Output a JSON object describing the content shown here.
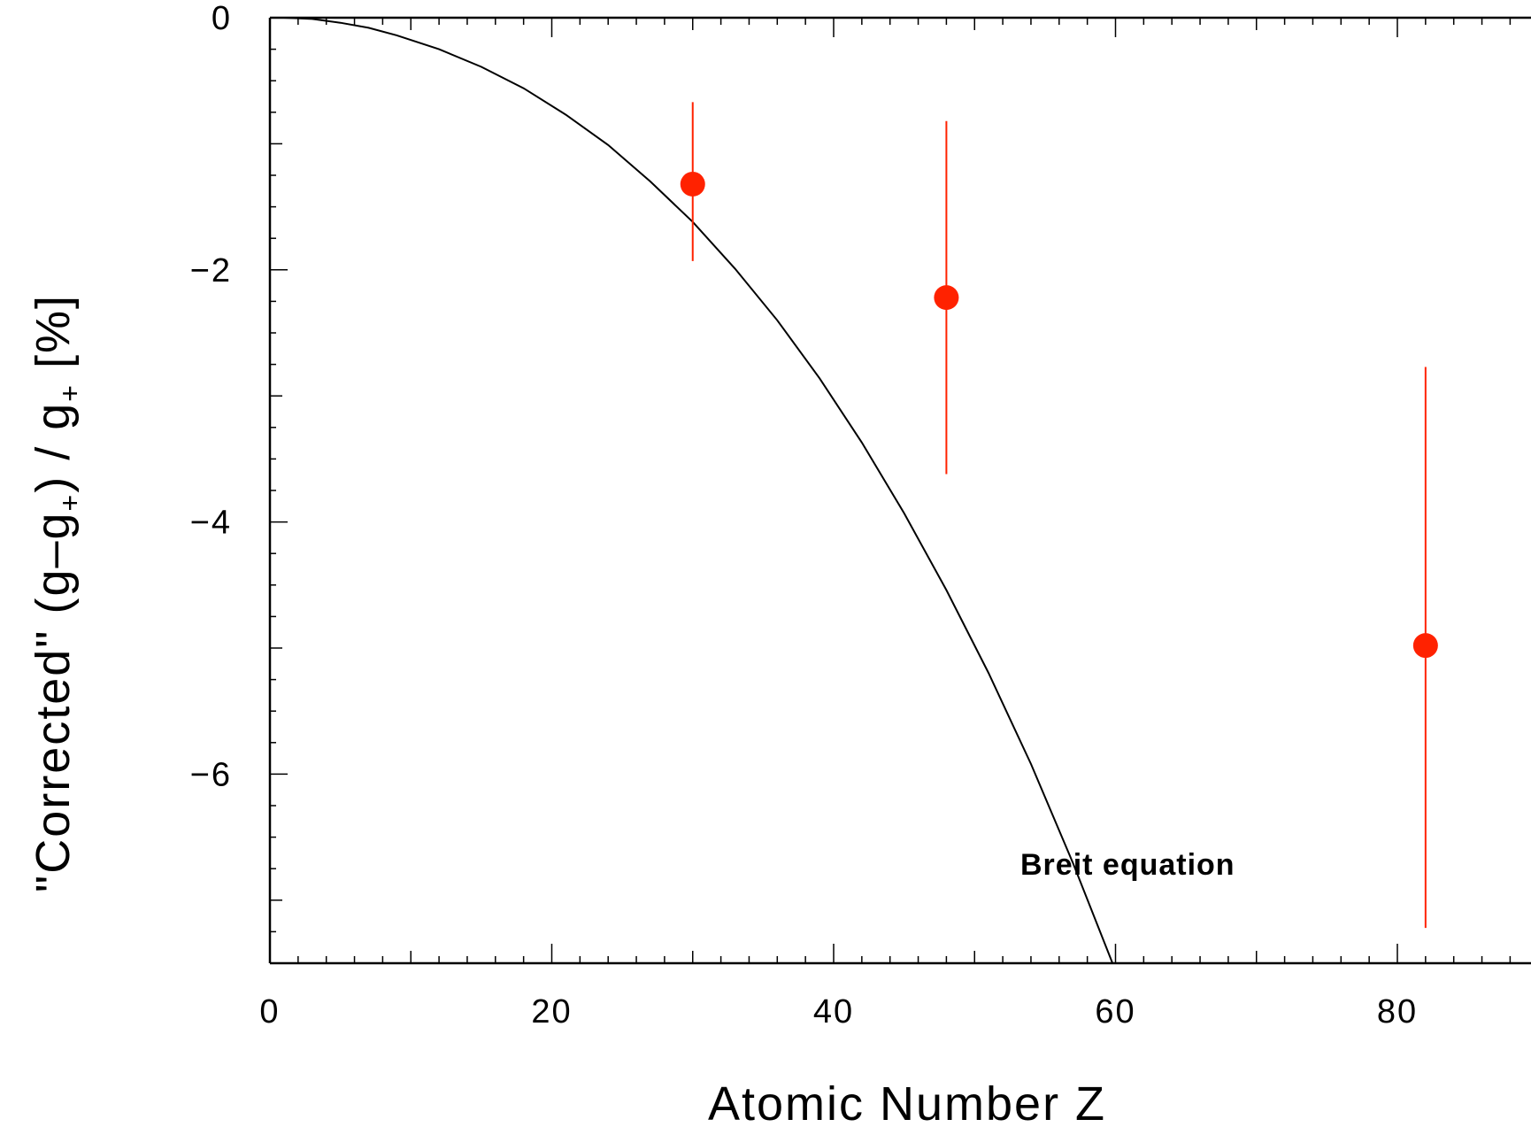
{
  "chart_data": {
    "type": "scatter",
    "xlabel": "Atomic Number Z",
    "ylabel_parts": {
      "pre": "\"Corrected\" (g–g",
      "sub1": "+",
      "mid": ") / g",
      "sub2": "+",
      "post": " [%]"
    },
    "xlim": [
      0,
      90
    ],
    "ylim": [
      -7.5,
      0
    ],
    "x_ticks": [
      0,
      20,
      40,
      60,
      80
    ],
    "x_tick_labels": [
      "0",
      "20",
      "40",
      "60",
      "80"
    ],
    "y_ticks": [
      0,
      -2,
      -4,
      -6
    ],
    "y_tick_labels": [
      "0",
      "−2",
      "−4",
      "−6"
    ],
    "grid": false,
    "annotation": "Breit  equation",
    "colors": {
      "points": "#ff2200",
      "curve": "#000000"
    },
    "series": [
      {
        "type": "scatter-errorbar",
        "points": [
          {
            "x": 30,
            "y": -1.32,
            "yerr_low": -1.93,
            "yerr_high": -0.67
          },
          {
            "x": 48,
            "y": -2.22,
            "yerr_low": -3.62,
            "yerr_high": -0.82
          },
          {
            "x": 82,
            "y": -4.98,
            "yerr_low": -7.22,
            "yerr_high": -2.77
          }
        ]
      },
      {
        "type": "line",
        "x": [
          1,
          3,
          5,
          7,
          9,
          12,
          15,
          18,
          21,
          24,
          27,
          30,
          33,
          36,
          39,
          42,
          45,
          48,
          51,
          54,
          57,
          60,
          63
        ],
        "y": [
          0.0,
          -0.01,
          -0.04,
          -0.08,
          -0.14,
          -0.25,
          -0.39,
          -0.56,
          -0.77,
          -1.01,
          -1.3,
          -1.62,
          -1.99,
          -2.4,
          -2.86,
          -3.37,
          -3.93,
          -4.54,
          -5.2,
          -5.92,
          -6.71,
          -7.56,
          -8.46
        ]
      }
    ]
  }
}
